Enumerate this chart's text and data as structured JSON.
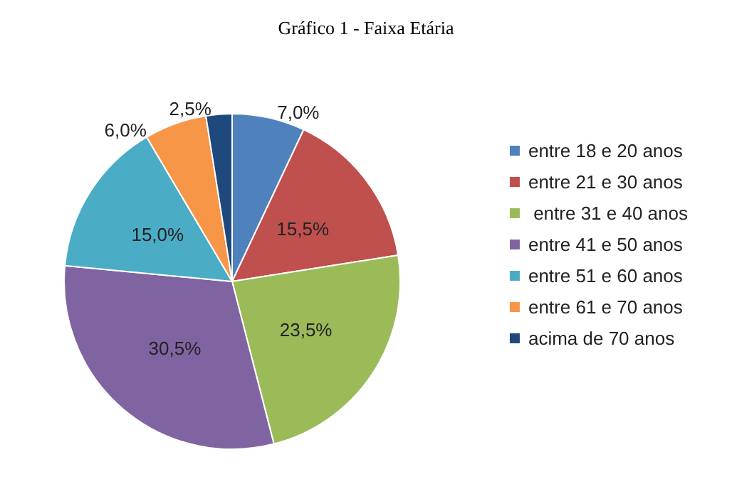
{
  "chart_data": {
    "type": "pie",
    "title": "Gráfico 1 - Faixa Etária",
    "categories": [
      "entre 18 e 20 anos",
      "entre 21 e 30 anos",
      " entre 31 e 40 anos",
      "entre 41 e 50 anos",
      "entre 51 e 60 anos",
      "entre 61 e 70 anos",
      "acima de 70 anos"
    ],
    "values": [
      7.0,
      15.5,
      23.5,
      30.5,
      15.0,
      6.0,
      2.5
    ],
    "value_labels": [
      "7,0%",
      "15,5%",
      "23,5%",
      "30,5%",
      "15,0%",
      "6,0%",
      "2,5%"
    ],
    "colors": [
      "#4f81bd",
      "#c0504d",
      "#9bbb59",
      "#8064a2",
      "#4bacc6",
      "#f79646",
      "#1f497d"
    ],
    "legend": "right"
  }
}
